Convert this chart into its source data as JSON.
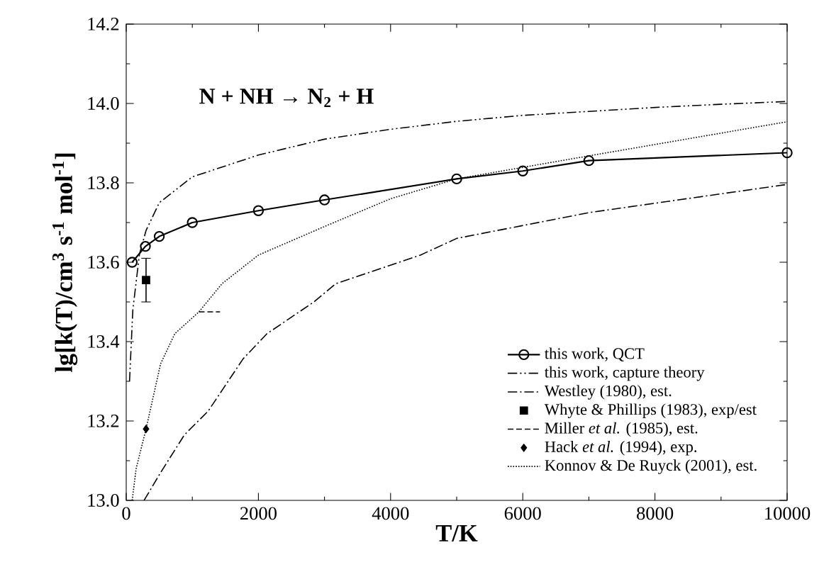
{
  "chart_data": {
    "type": "line",
    "xlabel": "T/K",
    "ylabel": "lg[k(T)/cm$^{3}$ s$^{-1}$ mol$^{-1}$]",
    "annotations": [
      "N + NH → N$_{2}$ + H"
    ],
    "xlim": [
      0,
      10000
    ],
    "ylim": [
      13.0,
      14.2
    ],
    "xticks": [
      0,
      2000,
      4000,
      6000,
      8000,
      10000
    ],
    "yticks": [
      {
        "value": 13.0,
        "label": "13.0"
      },
      {
        "value": 13.2,
        "label": "13.2"
      },
      {
        "value": 13.4,
        "label": "13.4"
      },
      {
        "value": 13.6,
        "label": "13.6"
      },
      {
        "value": 13.8,
        "label": "13.8"
      },
      {
        "value": 14.0,
        "label": "14.0"
      },
      {
        "value": 14.2,
        "label": "14.2"
      }
    ],
    "grid": false,
    "legend": "bottom right",
    "series": [
      {
        "name": "this work, QCT",
        "marker": "circle",
        "line_style": "solid",
        "color": "#000000",
        "x": [
          90,
          290,
          500,
          1000,
          2000,
          3000,
          5000,
          6000,
          7000,
          10000
        ],
        "values": [
          13.6,
          13.64,
          13.665,
          13.7,
          13.73,
          13.757,
          13.81,
          13.83,
          13.856,
          13.876
        ]
      },
      {
        "name": "this work, capture theory",
        "marker": "none",
        "line_style": "dashdotdotted",
        "color": "#000000",
        "x": [
          50,
          100,
          200,
          300,
          500,
          1000,
          2000,
          3000,
          4000,
          5000,
          6000,
          7000,
          8000,
          9000,
          10000
        ],
        "values": [
          13.3,
          13.48,
          13.62,
          13.68,
          13.75,
          13.815,
          13.87,
          13.91,
          13.935,
          13.955,
          13.97,
          13.98,
          13.99,
          13.998,
          14.005
        ]
      },
      {
        "name": "Westley (1980), est.",
        "marker": "none",
        "line_style": "dashdotted",
        "color": "#000000",
        "x": [
          270,
          520,
          880,
          1240,
          1770,
          2130,
          2840,
          3170,
          4450,
          5000,
          7000,
          10000
        ],
        "values": [
          13.0,
          13.07,
          13.165,
          13.225,
          13.357,
          13.42,
          13.5,
          13.546,
          13.618,
          13.66,
          13.725,
          13.796
        ]
      },
      {
        "name": "Whyte & Phillips (1983), exp/est",
        "type": "scatter",
        "marker": "square",
        "color": "#000000",
        "x": [
          300
        ],
        "values": [
          13.555
        ],
        "errors": [
          [
            13.5,
            13.61
          ]
        ]
      },
      {
        "name": "Miller *et al.* (1985), est.",
        "marker": "none",
        "line_style": "dashed",
        "color": "#000000",
        "x": [
          1100,
          1420
        ],
        "values": [
          13.475,
          13.475
        ]
      },
      {
        "name": "Hack *et al.* (1994), exp.",
        "type": "scatter",
        "marker": "diamond",
        "color": "#000000",
        "x": [
          300
        ],
        "values": [
          13.18
        ]
      },
      {
        "name": "Konnov & De Ruyck (2001), est.",
        "marker": "none",
        "line_style": "dotted",
        "color": "#000000",
        "x": [
          90,
          150,
          300,
          520,
          735,
          1100,
          1450,
          2000,
          3000,
          4000,
          5000,
          7000,
          10000
        ],
        "values": [
          13.0,
          13.08,
          13.18,
          13.344,
          13.42,
          13.475,
          13.546,
          13.618,
          13.69,
          13.76,
          13.81,
          13.868,
          13.954
        ]
      }
    ]
  }
}
